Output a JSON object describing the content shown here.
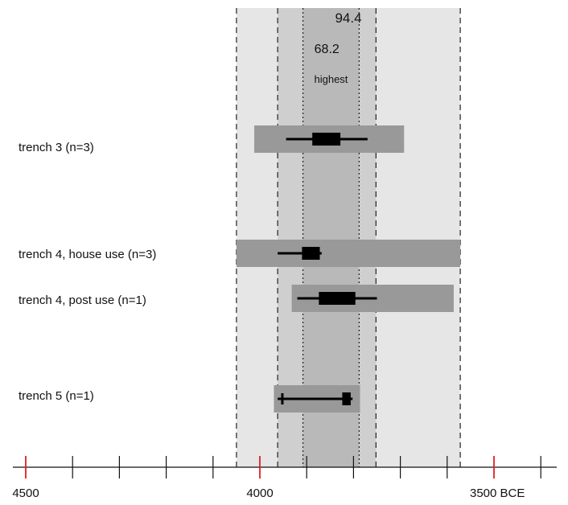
{
  "chart_data": {
    "type": "range-plot",
    "x_axis": {
      "direction": "reversed",
      "range": [
        4550,
        3430
      ],
      "major_ticks": [
        4500,
        4000,
        3500
      ],
      "minor_ticks": [
        4400,
        4300,
        4200,
        4100,
        3900,
        3800,
        3700,
        3600,
        3400
      ],
      "tick_labels": [
        "4500",
        "4000",
        "3500 BCE"
      ],
      "major_tick_color": "#e02020"
    },
    "bands": [
      {
        "label": "94.4",
        "from": 4050,
        "to": 3572,
        "color": "#e6e6e6",
        "line": "dashed"
      },
      {
        "label": "68.2",
        "from": 3962,
        "to": 3752,
        "color": "#cfcfcf",
        "line": "dashed"
      },
      {
        "label": "highest",
        "from": 3908,
        "to": 3788,
        "color": "#b9b9b9",
        "line": "dotted"
      }
    ],
    "rows": [
      {
        "label": "trench 3 (n=3)",
        "outer": [
          4012,
          3692
        ],
        "whisker": [
          3944,
          3770
        ],
        "box": [
          3888,
          3828
        ]
      },
      {
        "label": "trench 4, house use (n=3)",
        "outer": [
          4050,
          3572
        ],
        "whisker": [
          3962,
          3868
        ],
        "box": [
          3910,
          3872
        ]
      },
      {
        "label": "trench 4, post use (n=1)",
        "outer": [
          3932,
          3586
        ],
        "whisker": [
          3920,
          3750
        ],
        "box": [
          3874,
          3796
        ]
      },
      {
        "label": "trench 5 (n=1)",
        "outer": [
          3970,
          3786
        ],
        "whisker": [
          3962,
          3802
        ],
        "box": [
          3824,
          3806
        ],
        "marker": 3952
      }
    ],
    "colors": {
      "outer_bar": "#999999",
      "whisker": "#000000",
      "box": "#000000"
    }
  }
}
